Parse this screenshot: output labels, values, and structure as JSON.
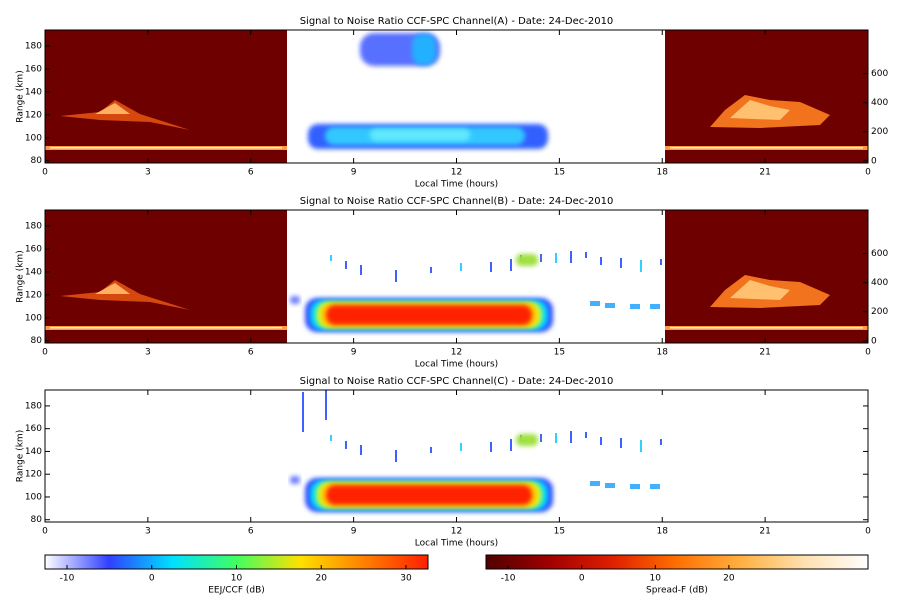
{
  "chart_data": [
    {
      "type": "heatmap",
      "title": "Signal to Noise Ratio CCF-SPC Channel(A) - Date: 24-Dec-2010",
      "x_label": "Local Time (hours)",
      "y_label": "Range (km)",
      "xlim": [
        0,
        24
      ],
      "xticks": [
        0,
        3,
        6,
        9,
        12,
        15,
        18,
        21,
        {
          "value": 24,
          "label": "0"
        }
      ],
      "ylim": [
        78,
        194
      ],
      "yticks": [
        80,
        100,
        120,
        140,
        160,
        180
      ],
      "y2lim": [
        -15,
        900
      ],
      "y2ticks": [
        0,
        200,
        400,
        600
      ]
    },
    {
      "type": "heatmap",
      "title": "Signal to Noise Ratio CCF-SPC Channel(B) - Date: 24-Dec-2010",
      "x_label": "Local Time (hours)",
      "y_label": "Range (km)",
      "xlim": [
        0,
        24
      ],
      "xticks": [
        0,
        3,
        6,
        9,
        12,
        15,
        18,
        21,
        {
          "value": 24,
          "label": "0"
        }
      ],
      "ylim": [
        78,
        194
      ],
      "yticks": [
        80,
        100,
        120,
        140,
        160,
        180
      ],
      "y2lim": [
        -15,
        900
      ],
      "y2ticks": [
        0,
        200,
        400,
        600
      ]
    },
    {
      "type": "heatmap",
      "title": "Signal to Noise Ratio CCF-SPC Channel(C) - Date: 24-Dec-2010",
      "x_label": "Local Time (hours)",
      "y_label": "Range (km)",
      "xlim": [
        0,
        24
      ],
      "xticks": [
        0,
        3,
        6,
        9,
        12,
        15,
        18,
        21,
        {
          "value": 24,
          "label": "0"
        }
      ],
      "ylim": [
        78,
        194
      ],
      "yticks": [
        80,
        100,
        120,
        140,
        160,
        180
      ]
    },
    {
      "type": "colorbar",
      "label": "EEJ/CCF (dB)",
      "lim": [
        -12.6,
        32.6
      ],
      "ticks": [
        -10,
        0,
        10,
        20,
        30
      ],
      "colors": [
        "#ffffff",
        "#3040ff",
        "#00e0ff",
        "#40ff60",
        "#ffe000",
        "#ff8000",
        "#ff2000"
      ]
    },
    {
      "type": "colorbar",
      "label": "Spread-F (dB)",
      "lim": [
        -13,
        38.9
      ],
      "ticks": [
        -10,
        0,
        10,
        20
      ],
      "colors": [
        "#500000",
        "#a00000",
        "#e02000",
        "#ff7000",
        "#ffb040",
        "#ffe0b0",
        "#ffffff"
      ]
    }
  ]
}
